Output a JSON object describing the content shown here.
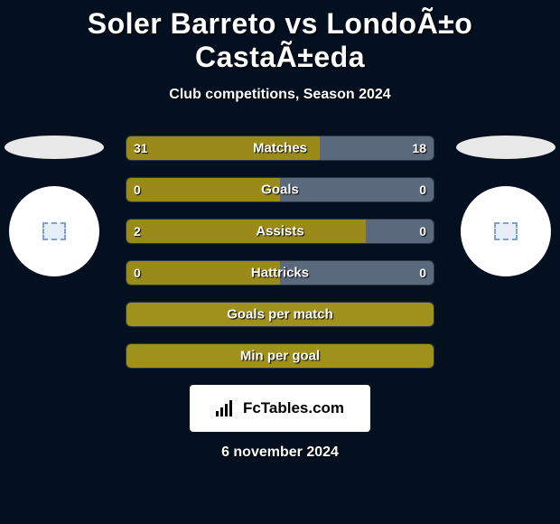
{
  "title": "Soler Barreto vs LondoÃ±o CastaÃ±eda",
  "subtitle": "Club competitions, Season 2024",
  "date": "6 november 2024",
  "brand": "FcTables.com",
  "colors": {
    "bg": "#04101f",
    "left_fill": "#9a8a1a",
    "right_fill": "#5a6a7c",
    "track": "#1a2636",
    "full_left": "#a0901c",
    "full_right": "#5a6a7c",
    "ellipse": "#e9e9e9",
    "avatar_bg": "#ffffff"
  },
  "stats": [
    {
      "label": "Matches",
      "left_val": "31",
      "right_val": "18",
      "left_pct": 63,
      "right_pct": 37,
      "left_color": "#9a8a1a",
      "right_color": "#5a6a7c"
    },
    {
      "label": "Goals",
      "left_val": "0",
      "right_val": "0",
      "left_pct": 50,
      "right_pct": 50,
      "left_color": "#9a8a1a",
      "right_color": "#5a6a7c"
    },
    {
      "label": "Assists",
      "left_val": "2",
      "right_val": "0",
      "left_pct": 78,
      "right_pct": 22,
      "left_color": "#9a8a1a",
      "right_color": "#5a6a7c"
    },
    {
      "label": "Hattricks",
      "left_val": "0",
      "right_val": "0",
      "left_pct": 50,
      "right_pct": 50,
      "left_color": "#9a8a1a",
      "right_color": "#5a6a7c"
    },
    {
      "label": "Goals per match",
      "left_val": "",
      "right_val": "",
      "left_pct": 100,
      "right_pct": 0,
      "left_color": "#a0901c",
      "right_color": "#5a6a7c"
    },
    {
      "label": "Min per goal",
      "left_val": "",
      "right_val": "",
      "left_pct": 100,
      "right_pct": 0,
      "left_color": "#a0901c",
      "right_color": "#5a6a7c"
    }
  ]
}
